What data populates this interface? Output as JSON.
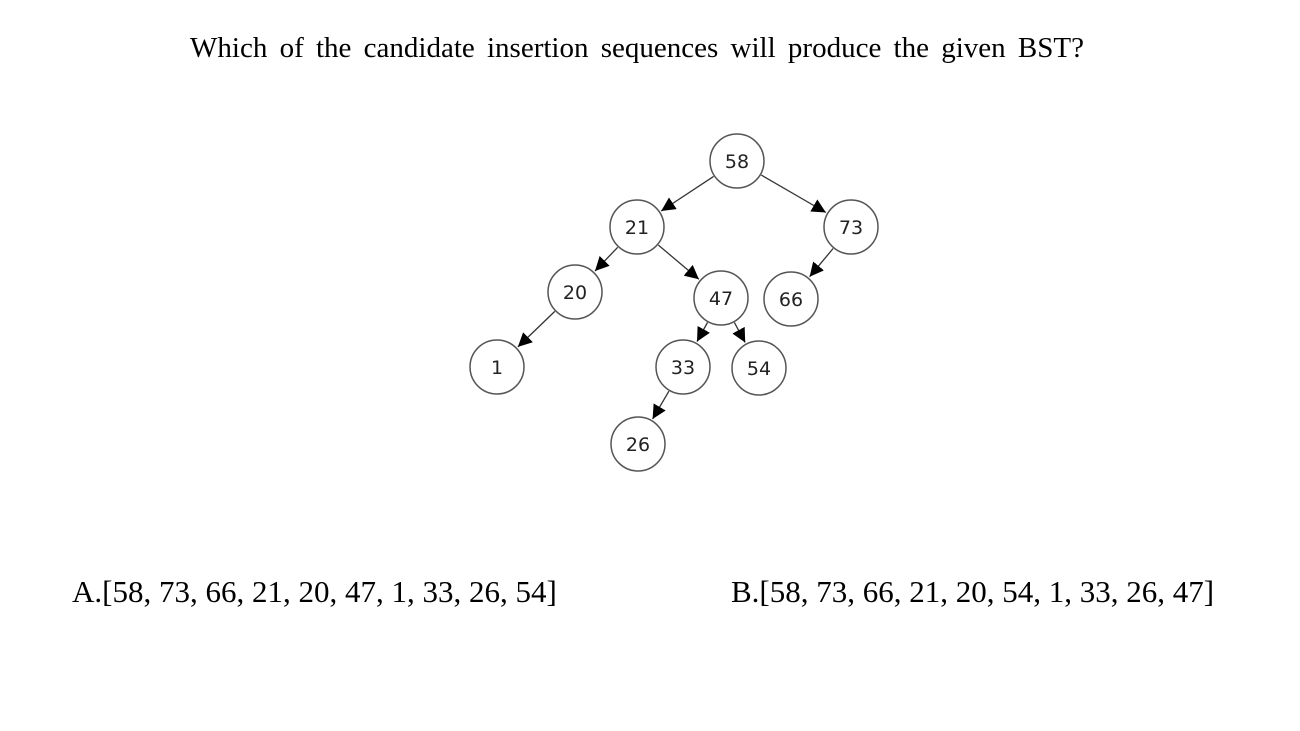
{
  "question": "Which of the candidate insertion sequences will produce the given BST?",
  "tree": {
    "nodes": [
      {
        "id": "n58",
        "label": "58"
      },
      {
        "id": "n21",
        "label": "21"
      },
      {
        "id": "n73",
        "label": "73"
      },
      {
        "id": "n20",
        "label": "20"
      },
      {
        "id": "n47",
        "label": "47"
      },
      {
        "id": "n66",
        "label": "66"
      },
      {
        "id": "n1",
        "label": "1"
      },
      {
        "id": "n33",
        "label": "33"
      },
      {
        "id": "n54",
        "label": "54"
      },
      {
        "id": "n26",
        "label": "26"
      }
    ],
    "edges": [
      {
        "from": "n58",
        "to": "n21"
      },
      {
        "from": "n58",
        "to": "n73"
      },
      {
        "from": "n21",
        "to": "n20"
      },
      {
        "from": "n21",
        "to": "n47"
      },
      {
        "from": "n73",
        "to": "n66"
      },
      {
        "from": "n20",
        "to": "n1"
      },
      {
        "from": "n47",
        "to": "n33"
      },
      {
        "from": "n47",
        "to": "n54"
      },
      {
        "from": "n33",
        "to": "n26"
      }
    ]
  },
  "options": {
    "a": "A.[58, 73, 66, 21, 20, 47, 1, 33, 26, 54]",
    "b": "B.[58, 73, 66, 21, 20, 54, 1, 33, 26, 47]"
  }
}
